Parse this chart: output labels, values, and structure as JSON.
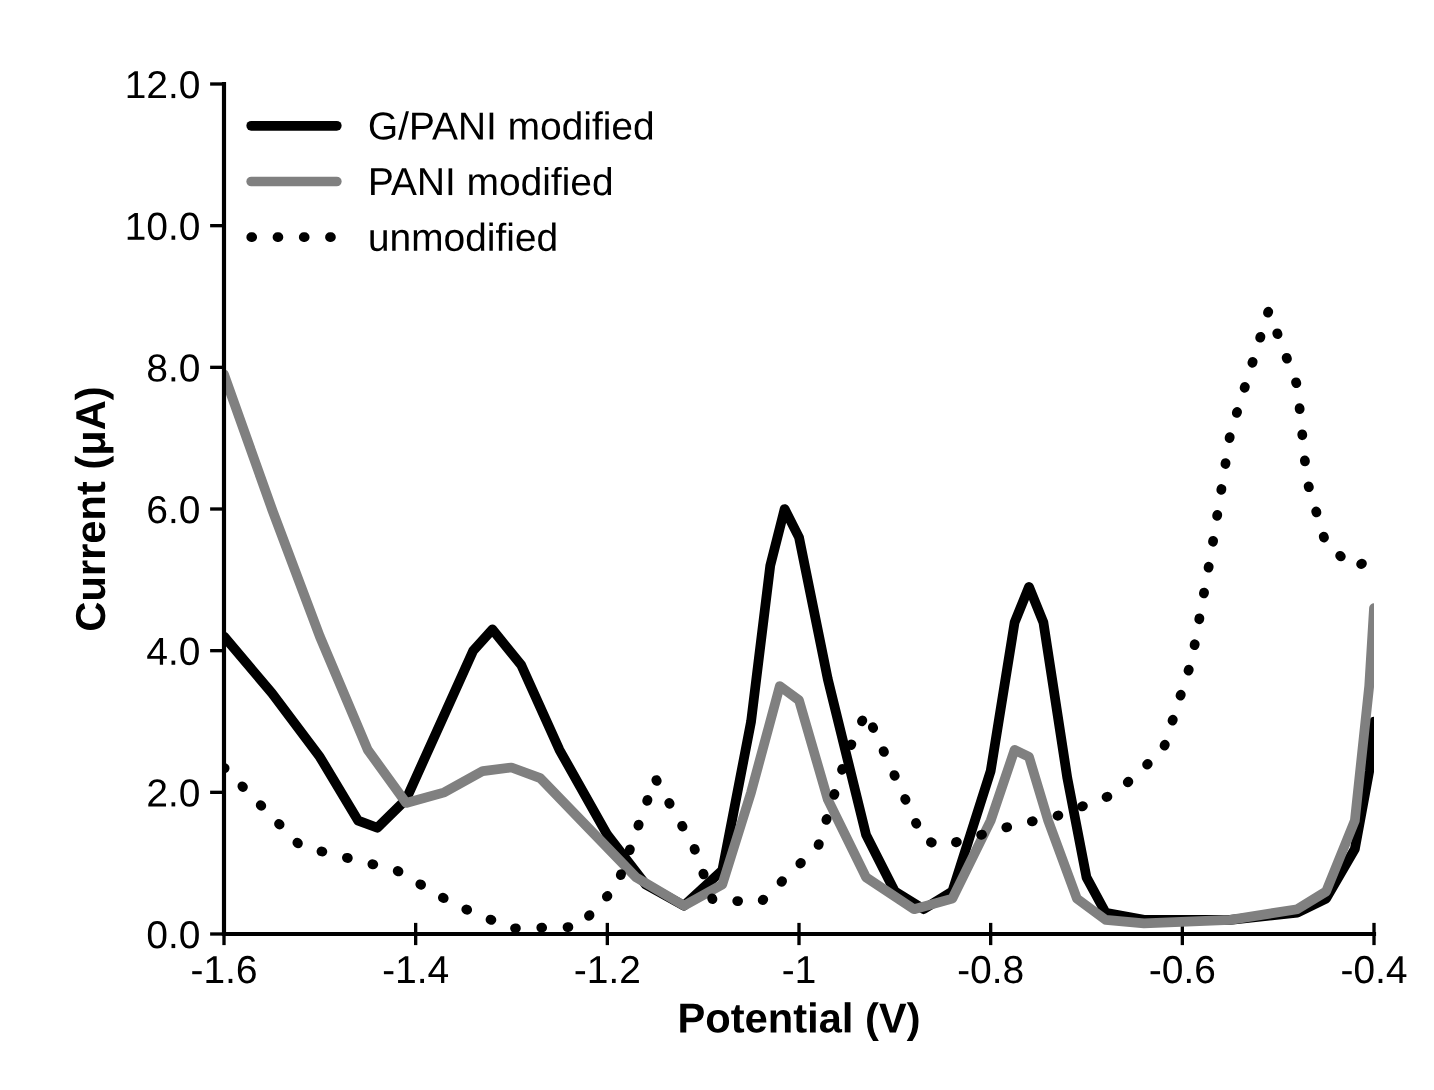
{
  "chart_data": {
    "type": "line",
    "xlabel": "Potential (V)",
    "ylabel": "Current (μA)",
    "xlim": [
      -1.6,
      -0.4
    ],
    "xticks": [
      -1.6,
      -1.4,
      -1.2,
      -1,
      -0.8,
      -0.6,
      -0.4
    ],
    "ylim": [
      0,
      12
    ],
    "yticks": [
      {
        "value": 0,
        "label": "0.0"
      },
      {
        "value": 2,
        "label": "2.0"
      },
      {
        "value": 4,
        "label": "4.0"
      },
      {
        "value": 6,
        "label": "6.0"
      },
      {
        "value": 8,
        "label": "8.0"
      },
      {
        "value": 10,
        "label": "10.0"
      },
      {
        "value": 12,
        "label": "12.0"
      }
    ],
    "grid": false,
    "legend": "top left",
    "series": [
      {
        "name": "G/PANI modified",
        "color": "#000000",
        "line_style": "solid",
        "x": [
          -1.6,
          -1.55,
          -1.5,
          -1.46,
          -1.44,
          -1.41,
          -1.37,
          -1.34,
          -1.32,
          -1.29,
          -1.25,
          -1.2,
          -1.16,
          -1.12,
          -1.08,
          -1.05,
          -1.03,
          -1.015,
          -1.0,
          -0.97,
          -0.93,
          -0.9,
          -0.87,
          -0.84,
          -0.8,
          -0.775,
          -0.76,
          -0.745,
          -0.72,
          -0.7,
          -0.68,
          -0.64,
          -0.55,
          -0.48,
          -0.45,
          -0.42,
          -0.405,
          -0.4
        ],
        "values": [
          4.2,
          3.4,
          2.5,
          1.6,
          1.5,
          1.9,
          3.1,
          4.0,
          4.3,
          3.8,
          2.6,
          1.4,
          0.7,
          0.4,
          0.9,
          3.0,
          5.2,
          6.0,
          5.6,
          3.6,
          1.4,
          0.6,
          0.35,
          0.6,
          2.3,
          4.4,
          4.9,
          4.4,
          2.2,
          0.8,
          0.3,
          0.2,
          0.2,
          0.3,
          0.5,
          1.2,
          2.3,
          3.0
        ]
      },
      {
        "name": "PANI modified",
        "color": "#808080",
        "line_style": "solid",
        "x": [
          -1.6,
          -1.55,
          -1.5,
          -1.45,
          -1.41,
          -1.37,
          -1.33,
          -1.3,
          -1.27,
          -1.22,
          -1.17,
          -1.12,
          -1.08,
          -1.05,
          -1.02,
          -1.0,
          -0.97,
          -0.93,
          -0.88,
          -0.84,
          -0.8,
          -0.775,
          -0.76,
          -0.74,
          -0.71,
          -0.68,
          -0.64,
          -0.55,
          -0.48,
          -0.45,
          -0.42,
          -0.405,
          -0.4
        ],
        "values": [
          7.9,
          6.0,
          4.2,
          2.6,
          1.85,
          2.0,
          2.3,
          2.35,
          2.2,
          1.5,
          0.8,
          0.4,
          0.7,
          2.0,
          3.5,
          3.3,
          1.9,
          0.8,
          0.35,
          0.5,
          1.6,
          2.6,
          2.5,
          1.6,
          0.5,
          0.2,
          0.15,
          0.2,
          0.35,
          0.6,
          1.6,
          3.5,
          4.6
        ]
      },
      {
        "name": "unmodified",
        "color": "#000000",
        "line_style": "dotted",
        "x": [
          -1.6,
          -1.52,
          -1.42,
          -1.36,
          -1.3,
          -1.23,
          -1.19,
          -1.15,
          -1.11,
          -1.09,
          -1.04,
          -0.98,
          -0.95,
          -0.93,
          -0.9,
          -0.87,
          -0.85,
          -0.78,
          -0.73,
          -0.67,
          -0.62,
          -0.59,
          -0.57,
          -0.55,
          -0.51,
          -0.48,
          -0.47,
          -0.45,
          -0.42,
          -0.4
        ],
        "values": [
          2.35,
          1.24,
          0.9,
          0.42,
          0.08,
          0.1,
          0.68,
          2.2,
          1.24,
          0.48,
          0.45,
          1.24,
          2.54,
          3.13,
          2.23,
          1.33,
          1.24,
          1.52,
          1.67,
          1.98,
          2.6,
          3.87,
          5.37,
          7.06,
          8.8,
          7.74,
          6.4,
          5.5,
          5.17,
          5.33
        ]
      }
    ]
  }
}
